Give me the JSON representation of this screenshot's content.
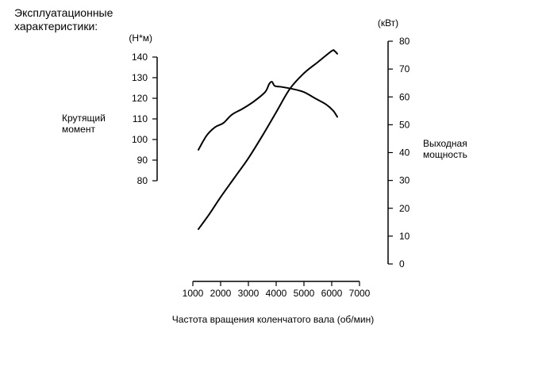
{
  "chart_data": {
    "type": "line",
    "title_lines": [
      "Эксплуатационные",
      "характеристики:"
    ],
    "xlabel": "Частота вращения коленчатого вала (об/мин)",
    "ylabel_left_lines": [
      "Крутящий",
      "момент"
    ],
    "ylabel_right_lines": [
      "Выходная",
      "мощность"
    ],
    "unit_left": "(Н*м)",
    "unit_right": "(кВт)",
    "x_ticks": [
      1000,
      2000,
      3000,
      4000,
      5000,
      6000,
      7000
    ],
    "xlim": [
      1000,
      7000
    ],
    "y_left_ticks": [
      80,
      90,
      100,
      110,
      120,
      130,
      140
    ],
    "y_left_lim": [
      80,
      140
    ],
    "y_right_ticks": [
      0,
      10,
      20,
      30,
      40,
      50,
      60,
      70,
      80
    ],
    "y_right_lim": [
      0,
      80
    ],
    "series": [
      {
        "axis": "left",
        "x": [
          1200,
          1500,
          1800,
          2100,
          2400,
          2800,
          3200,
          3600,
          3750,
          3850,
          3950,
          4200,
          4600,
          5000,
          5400,
          5800,
          6050,
          6200
        ],
        "values": [
          95,
          102,
          106,
          108,
          112,
          115,
          118.5,
          123,
          127,
          128,
          126,
          125.5,
          124.5,
          123,
          120,
          117,
          114,
          111
        ]
      },
      {
        "axis": "right",
        "x": [
          1200,
          1600,
          2000,
          2500,
          3000,
          3500,
          4000,
          4500,
          5000,
          5500,
          6000,
          6100,
          6200
        ],
        "values": [
          12.5,
          18,
          24,
          31,
          38,
          46,
          54.5,
          63,
          68.5,
          72.5,
          76.5,
          76.5,
          75.5
        ]
      }
    ],
    "grid": false,
    "legend": "none"
  },
  "colors": {
    "line": "#000000",
    "axis": "#000000"
  }
}
